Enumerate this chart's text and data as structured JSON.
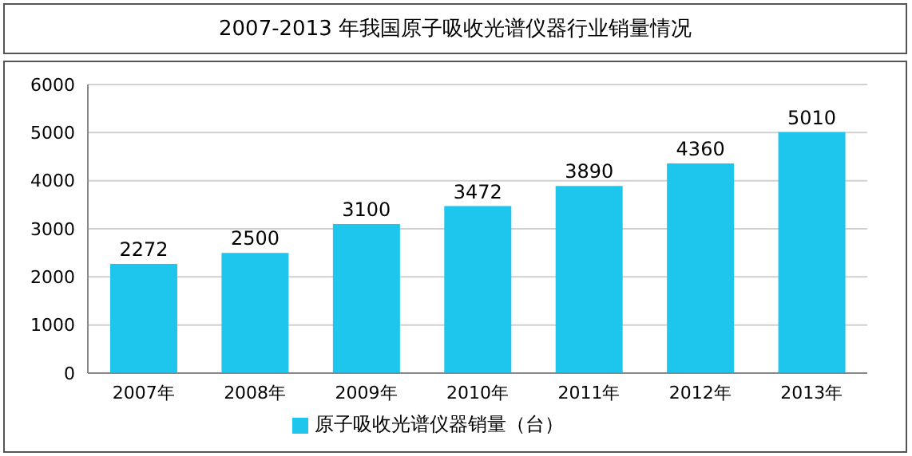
{
  "chart_data": {
    "type": "bar",
    "title": "2007-2013 年我国原子吸收光谱仪器行业销量情况",
    "categories": [
      "2007年",
      "2008年",
      "2009年",
      "2010年",
      "2011年",
      "2012年",
      "2013年"
    ],
    "series": [
      {
        "name": "原子吸收光谱仪器销量（台）",
        "color": "#1ec6ee",
        "values": [
          2272,
          2500,
          3100,
          3472,
          3890,
          4360,
          5010
        ]
      }
    ],
    "ylim": [
      0,
      6000
    ],
    "yticks": [
      0,
      1000,
      2000,
      3000,
      4000,
      5000,
      6000
    ],
    "grid": "y",
    "legend": "bottom",
    "data_labels": true
  }
}
